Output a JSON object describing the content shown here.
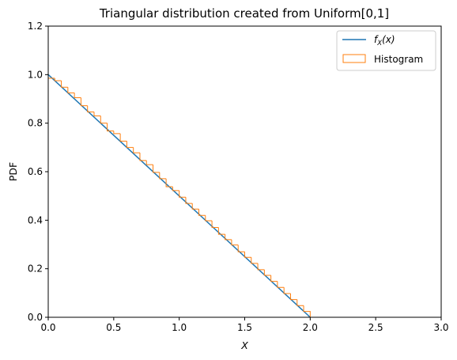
{
  "chart_data": {
    "type": "line",
    "title": "Triangular distribution created from Uniform[0,1]",
    "xlabel": "X",
    "ylabel": "PDF",
    "xlim": [
      0.0,
      3.0
    ],
    "ylim": [
      0.0,
      1.2
    ],
    "x_ticks": [
      "0.0",
      "0.5",
      "1.0",
      "1.5",
      "2.0",
      "2.5",
      "3.0"
    ],
    "y_ticks": [
      "0.0",
      "0.2",
      "0.4",
      "0.6",
      "0.8",
      "1.0",
      "1.2"
    ],
    "grid": false,
    "legend_position": "top-right",
    "legend": {
      "pdf_main": "f",
      "pdf_sub": "X",
      "pdf_arg": "(x)",
      "hist": "Histogram"
    },
    "colors": {
      "pdf": "#1f77b4",
      "hist": "#ff7f0e"
    },
    "series": [
      {
        "name": "f_X(x)",
        "kind": "line",
        "x": [
          0.0,
          2.0
        ],
        "y": [
          1.0,
          0.0
        ]
      },
      {
        "name": "Histogram",
        "kind": "step-histogram",
        "bins": [
          0.0,
          0.05,
          0.1,
          0.15,
          0.2,
          0.25,
          0.3,
          0.35,
          0.4,
          0.45,
          0.5,
          0.55,
          0.6,
          0.65,
          0.7,
          0.75,
          0.8,
          0.85,
          0.9,
          0.95,
          1.0,
          1.05,
          1.1,
          1.15,
          1.2,
          1.25,
          1.3,
          1.35,
          1.4,
          1.45,
          1.5,
          1.55,
          1.6,
          1.65,
          1.7,
          1.75,
          1.8,
          1.85,
          1.9,
          1.95,
          2.0
        ],
        "heights": [
          0.985,
          0.975,
          0.948,
          0.925,
          0.905,
          0.872,
          0.846,
          0.83,
          0.8,
          0.768,
          0.757,
          0.726,
          0.7,
          0.678,
          0.646,
          0.629,
          0.597,
          0.571,
          0.538,
          0.522,
          0.495,
          0.469,
          0.446,
          0.42,
          0.398,
          0.37,
          0.342,
          0.32,
          0.298,
          0.27,
          0.247,
          0.222,
          0.196,
          0.173,
          0.148,
          0.123,
          0.098,
          0.073,
          0.048,
          0.024
        ]
      }
    ]
  }
}
